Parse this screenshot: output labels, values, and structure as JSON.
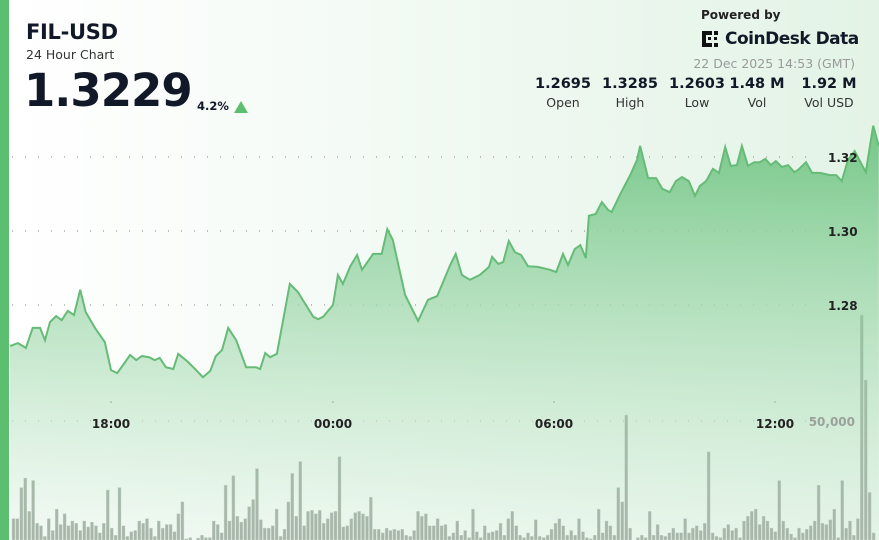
{
  "header": {
    "title": "FIL-USD",
    "subtitle": "24 Hour Chart",
    "price": "1.3229",
    "change": "4.2%",
    "change_direction": "up",
    "powered_by": "Powered by",
    "brand": "CoinDesk Data",
    "timestamp": "22 Dec 2025 14:53 (GMT)"
  },
  "stats": [
    {
      "value": "1.2695",
      "label": "Open"
    },
    {
      "value": "1.3285",
      "label": "High"
    },
    {
      "value": "1.2603",
      "label": "Low"
    },
    {
      "value": "1.48 M",
      "label": "Vol"
    },
    {
      "value": "1.92 M",
      "label": "Vol USD"
    }
  ],
  "colors": {
    "accent": "#5bbf6f",
    "line": "#66bb77",
    "volume": "#6b776c",
    "text": "#111827"
  },
  "chart_data": {
    "type": "area",
    "grid": true,
    "y_ticks": [
      "1.28",
      "1.30",
      "1.32"
    ],
    "x_ticks": [
      "18:00",
      "00:00",
      "06:00",
      "12:00"
    ],
    "volume_tick": "50,000",
    "ylim": [
      1.255,
      1.333
    ],
    "price_series": [
      [
        "15:16",
        1.2689
      ],
      [
        "15:29",
        1.2697
      ],
      [
        "15:42",
        1.2684
      ],
      [
        "15:53",
        1.2738
      ],
      [
        "16:05",
        1.2738
      ],
      [
        "16:13",
        1.2705
      ],
      [
        "16:21",
        1.2754
      ],
      [
        "16:31",
        1.277
      ],
      [
        "16:40",
        1.2759
      ],
      [
        "16:50",
        1.2784
      ],
      [
        "17:00",
        1.2773
      ],
      [
        "17:10",
        1.2841
      ],
      [
        "17:19",
        1.2781
      ],
      [
        "17:34",
        1.2738
      ],
      [
        "17:50",
        1.27
      ],
      [
        "18:00",
        1.2624
      ],
      [
        "18:10",
        1.2616
      ],
      [
        "18:23",
        1.2646
      ],
      [
        "18:31",
        1.2665
      ],
      [
        "18:41",
        1.2651
      ],
      [
        "18:50",
        1.2662
      ],
      [
        "19:02",
        1.2659
      ],
      [
        "19:11",
        1.2651
      ],
      [
        "19:19",
        1.2657
      ],
      [
        "19:29",
        1.2632
      ],
      [
        "19:41",
        1.2627
      ],
      [
        "19:49",
        1.2668
      ],
      [
        "20:05",
        1.2646
      ],
      [
        "20:18",
        1.2624
      ],
      [
        "20:29",
        1.2605
      ],
      [
        "20:41",
        1.2622
      ],
      [
        "20:50",
        1.2662
      ],
      [
        "21:00",
        1.2678
      ],
      [
        "21:10",
        1.2738
      ],
      [
        "21:23",
        1.2705
      ],
      [
        "21:39",
        1.2632
      ],
      [
        "21:55",
        1.2632
      ],
      [
        "22:02",
        1.2627
      ],
      [
        "22:10",
        1.267
      ],
      [
        "22:18",
        1.2659
      ],
      [
        "22:29",
        1.2668
      ],
      [
        "22:50",
        1.2857
      ],
      [
        "23:03",
        1.2835
      ],
      [
        "23:16",
        1.28
      ],
      [
        "23:28",
        1.2768
      ],
      [
        "23:36",
        1.2762
      ],
      [
        "23:44",
        1.2768
      ],
      [
        "00:00",
        1.28
      ],
      [
        "00:08",
        1.2881
      ],
      [
        "00:16",
        1.2857
      ],
      [
        "00:28",
        1.2905
      ],
      [
        "00:39",
        1.2935
      ],
      [
        "00:47",
        1.2895
      ],
      [
        "01:05",
        1.2938
      ],
      [
        "01:19",
        1.2938
      ],
      [
        "01:28",
        1.3005
      ],
      [
        "01:37",
        1.2976
      ],
      [
        "01:57",
        1.2827
      ],
      [
        "02:18",
        1.2757
      ],
      [
        "02:34",
        1.2814
      ],
      [
        "02:49",
        1.2824
      ],
      [
        "03:10",
        1.2908
      ],
      [
        "03:19",
        1.2938
      ],
      [
        "03:29",
        1.2881
      ],
      [
        "03:42",
        1.2868
      ],
      [
        "03:58",
        1.2881
      ],
      [
        "04:13",
        1.2903
      ],
      [
        "04:18",
        1.293
      ],
      [
        "04:28",
        1.2911
      ],
      [
        "04:36",
        1.2916
      ],
      [
        "04:45",
        1.2973
      ],
      [
        "04:55",
        1.2943
      ],
      [
        "05:05",
        1.2935
      ],
      [
        "05:16",
        1.2905
      ],
      [
        "05:32",
        1.2903
      ],
      [
        "05:52",
        1.2895
      ],
      [
        "06:02",
        1.2889
      ],
      [
        "06:13",
        1.2938
      ],
      [
        "06:21",
        1.2908
      ],
      [
        "06:32",
        1.2951
      ],
      [
        "06:41",
        1.2962
      ],
      [
        "06:50",
        1.2927
      ],
      [
        "06:55",
        1.3041
      ],
      [
        "07:06",
        1.3046
      ],
      [
        "07:16",
        1.3078
      ],
      [
        "07:26",
        1.3057
      ],
      [
        "07:32",
        1.3051
      ],
      [
        "07:45",
        1.3097
      ],
      [
        "08:02",
        1.3151
      ],
      [
        "08:13",
        1.3192
      ],
      [
        "08:18",
        1.323
      ],
      [
        "08:31",
        1.3143
      ],
      [
        "08:44",
        1.3143
      ],
      [
        "08:54",
        1.3114
      ],
      [
        "09:06",
        1.3105
      ],
      [
        "09:16",
        1.3135
      ],
      [
        "09:26",
        1.3146
      ],
      [
        "09:37",
        1.3135
      ],
      [
        "09:47",
        1.3095
      ],
      [
        "09:55",
        1.3122
      ],
      [
        "10:05",
        1.3135
      ],
      [
        "10:16",
        1.3168
      ],
      [
        "10:26",
        1.3157
      ],
      [
        "10:36",
        1.3227
      ],
      [
        "10:45",
        1.3176
      ],
      [
        "10:55",
        1.3178
      ],
      [
        "11:03",
        1.323
      ],
      [
        "11:13",
        1.3176
      ],
      [
        "11:23",
        1.3186
      ],
      [
        "11:32",
        1.3186
      ],
      [
        "11:41",
        1.3195
      ],
      [
        "11:50",
        1.3178
      ],
      [
        "11:58",
        1.3189
      ],
      [
        "12:08",
        1.3173
      ],
      [
        "12:18",
        1.3178
      ],
      [
        "12:28",
        1.3159
      ],
      [
        "12:34",
        1.3165
      ],
      [
        "12:47",
        1.3186
      ],
      [
        "12:57",
        1.3157
      ],
      [
        "13:10",
        1.3157
      ],
      [
        "13:26",
        1.3151
      ],
      [
        "13:36",
        1.3151
      ],
      [
        "13:45",
        1.3135
      ],
      [
        "13:55",
        1.3192
      ],
      [
        "14:06",
        1.3216
      ],
      [
        "14:24",
        1.3159
      ],
      [
        "14:36",
        1.3285
      ],
      [
        "14:45",
        1.3229
      ]
    ],
    "volume_series": [
      9000,
      9000,
      22000,
      26000,
      12000,
      25000,
      7000,
      6000,
      1500,
      9000,
      4000,
      13000,
      6500,
      11000,
      6000,
      8000,
      7000,
      4000,
      8000,
      5500,
      7500,
      6000,
      3000,
      7000,
      21000,
      5000,
      2000,
      22000,
      6000,
      1500,
      3500,
      4000,
      8000,
      7000,
      9000,
      5000,
      1500,
      8000,
      5000,
      6500,
      6500,
      3500,
      11000,
      16000,
      500,
      1000,
      0,
      800,
      2000,
      1000,
      1000,
      8000,
      6500,
      3000,
      23000,
      8000,
      27000,
      10000,
      7500,
      9000,
      14000,
      17000,
      30000,
      8500,
      5000,
      5000,
      6000,
      13000,
      1500,
      4500,
      16000,
      28000,
      10000,
      33000,
      6000,
      12000,
      12500,
      11000,
      12500,
      7000,
      9000,
      11500,
      12000,
      35000,
      5500,
      6000,
      9000,
      11500,
      12000,
      11000,
      10000,
      18000,
      4500,
      4500,
      3000,
      5000,
      4000,
      4500,
      4000,
      4500,
      2000,
      1500,
      4000,
      12000,
      10000,
      11000,
      6000,
      6000,
      9000,
      6000,
      6500,
      1500,
      3000,
      8000,
      2000,
      4000,
      1000,
      13000,
      3500,
      1000,
      6000,
      3000,
      3500,
      4000,
      7000,
      2000,
      9000,
      12000,
      6000,
      2000,
      1000,
      3000,
      1500,
      8500,
      1500,
      1000,
      2000,
      4500,
      7000,
      9000,
      6000,
      2000,
      4000,
      2000,
      9000,
      3500,
      1000,
      500,
      2000,
      13000,
      3000,
      8000,
      6000,
      2000,
      22000,
      16000,
      52500,
      5000,
      0,
      1000,
      2000,
      1000,
      12000,
      2000,
      6500,
      2000,
      1500,
      3000,
      5000,
      3000,
      3000,
      9000,
      3000,
      5000,
      6000,
      4000,
      7000,
      37000,
      3000,
      1500,
      1000,
      5000,
      6500,
      4000,
      5000,
      1000,
      8000,
      10000,
      12000,
      13000,
      6500,
      10000,
      8000,
      5000,
      3500,
      25000,
      8000,
      5000,
      2500,
      1000,
      5000,
      3000,
      4500,
      6000,
      8000,
      23000,
      7000,
      6500,
      8500,
      13000,
      1000,
      25000,
      5000,
      8000,
      2000,
      9000,
      94500,
      67200,
      20000,
      3000
    ]
  }
}
